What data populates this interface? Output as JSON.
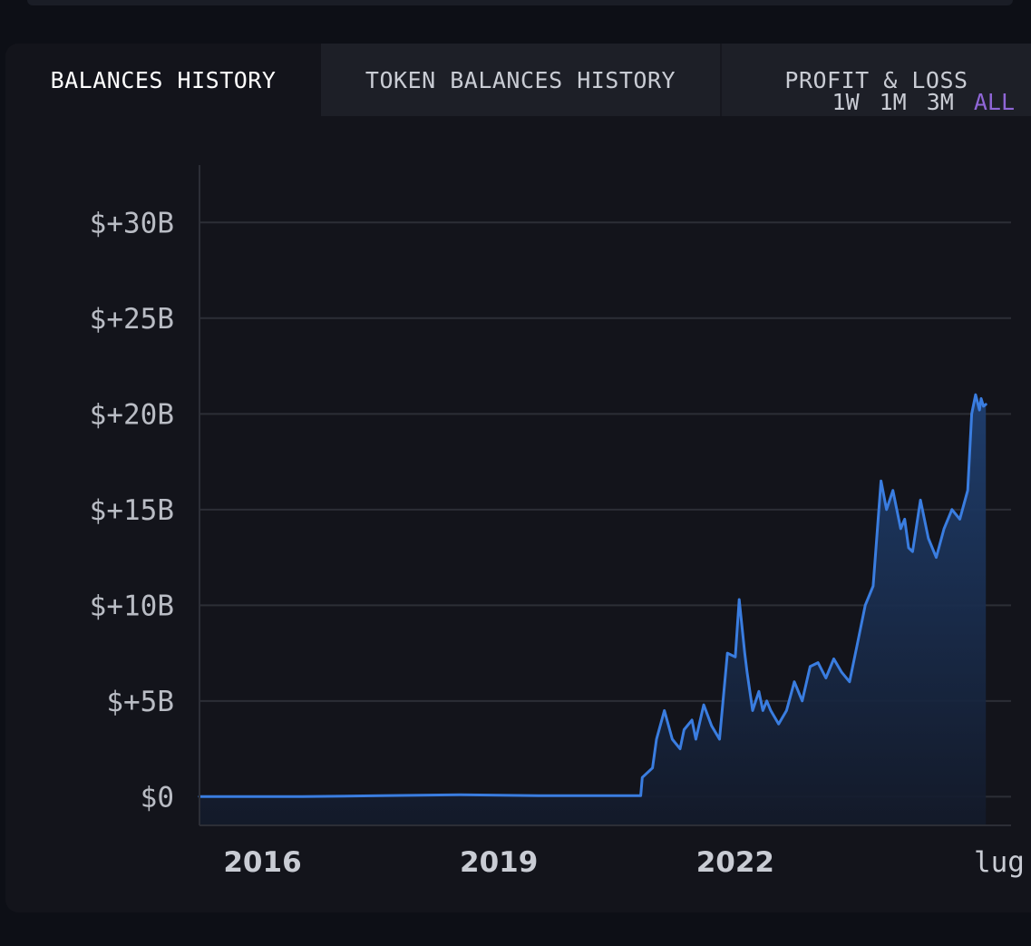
{
  "tabs": [
    {
      "label": "BALANCES HISTORY",
      "active": true
    },
    {
      "label": "TOKEN BALANCES HISTORY",
      "active": false
    },
    {
      "label": "PROFIT & LOSS",
      "active": false
    }
  ],
  "ranges": [
    {
      "label": "1W",
      "active": false
    },
    {
      "label": "1M",
      "active": false
    },
    {
      "label": "3M",
      "active": false
    },
    {
      "label": "ALL",
      "active": true
    }
  ],
  "colors": {
    "background": "#0d0f16",
    "card": "#13141b",
    "tab_inactive": "#1d1f27",
    "line": "#3a7de0",
    "area_top": "#1f3f70",
    "area_bottom": "#131a2a",
    "grid": "#2c2e36",
    "range_active": "#8f66d6"
  },
  "chart_data": {
    "type": "area",
    "title": "",
    "xlabel": "",
    "ylabel": "",
    "ylim": [
      -1.5,
      33
    ],
    "xlim": [
      2015.2,
      2025.5
    ],
    "y_ticks": [
      {
        "value": 0,
        "label": "$0"
      },
      {
        "value": 5,
        "label": "$+5B"
      },
      {
        "value": 10,
        "label": "$+10B"
      },
      {
        "value": 15,
        "label": "$+15B"
      },
      {
        "value": 20,
        "label": "$+20B"
      },
      {
        "value": 25,
        "label": "$+25B"
      },
      {
        "value": 30,
        "label": "$+30B"
      }
    ],
    "x_ticks": [
      {
        "value": 2016,
        "label": "2016"
      },
      {
        "value": 2019,
        "label": "2019"
      },
      {
        "value": 2022,
        "label": "2022"
      },
      {
        "value": 2025.35,
        "label": "lug"
      }
    ],
    "grid": true,
    "legend": "none",
    "series": [
      {
        "x": [
          2015.2,
          2016.5,
          2017.5,
          2018.5,
          2019.5,
          2020.5,
          2020.8,
          2020.82,
          2020.95,
          2021.0,
          2021.1,
          2021.2,
          2021.3,
          2021.35,
          2021.45,
          2021.5,
          2021.6,
          2021.7,
          2021.8,
          2021.9,
          2022.0,
          2022.05,
          2022.12,
          2022.15,
          2022.22,
          2022.3,
          2022.35,
          2022.4,
          2022.45,
          2022.55,
          2022.65,
          2022.75,
          2022.85,
          2022.95,
          2023.05,
          2023.15,
          2023.25,
          2023.35,
          2023.45,
          2023.55,
          2023.65,
          2023.75,
          2023.85,
          2023.92,
          2024.0,
          2024.1,
          2024.15,
          2024.2,
          2024.25,
          2024.35,
          2024.45,
          2024.55,
          2024.65,
          2024.75,
          2024.85,
          2024.95,
          2025.0,
          2025.05,
          2025.1,
          2025.12,
          2025.15,
          2025.18
        ],
        "values": [
          0.0,
          0.0,
          0.05,
          0.1,
          0.05,
          0.05,
          0.05,
          1.0,
          1.5,
          3.0,
          4.5,
          3.0,
          2.5,
          3.5,
          4.0,
          3.0,
          4.8,
          3.7,
          3.0,
          7.5,
          7.3,
          10.3,
          7.5,
          6.5,
          4.5,
          5.5,
          4.5,
          5.0,
          4.5,
          3.8,
          4.5,
          6.0,
          5.0,
          6.8,
          7.0,
          6.2,
          7.2,
          6.5,
          6.0,
          8.0,
          10.0,
          11.0,
          16.5,
          15.0,
          16.0,
          14.0,
          14.5,
          13.0,
          12.8,
          15.5,
          13.5,
          12.5,
          14.0,
          15.0,
          14.5,
          16.0,
          20.0,
          21.0,
          20.2,
          20.8,
          20.4,
          20.5
        ]
      }
    ]
  }
}
